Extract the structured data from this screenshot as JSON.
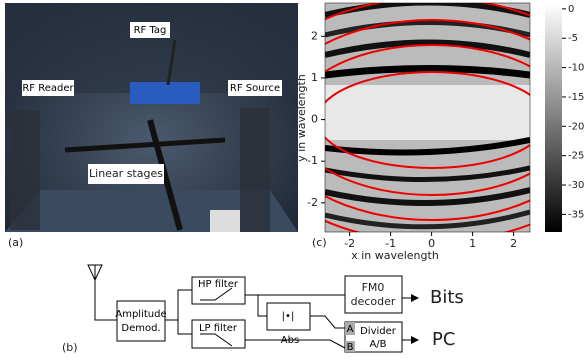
{
  "photo": {
    "tag": "RF Tag",
    "reader": "RF Reader",
    "source": "RF Source",
    "stages": "Linear stages",
    "caption": "(a)"
  },
  "heatmap": {
    "caption": "(c)",
    "xlabel": "x in wavelength",
    "ylabel": "y in wavelength",
    "xlim": [
      -2.6,
      2.4
    ],
    "xticks": [
      -2,
      -1,
      0,
      1,
      2
    ],
    "ylim": [
      -2.7,
      2.8
    ],
    "yticks": [
      -2,
      -1,
      0,
      1,
      2
    ],
    "colorbar": {
      "lim": [
        -38,
        1
      ],
      "ticks": [
        0,
        -5,
        -10,
        -15,
        -20,
        -25,
        -30,
        -35
      ]
    }
  },
  "diagram": {
    "caption": "(b)",
    "demod": [
      "Amplitude",
      "Demod."
    ],
    "hp": "HP filter",
    "lp": "LP filter",
    "abs_symbol": "|•|",
    "abs": "Abs",
    "fm0": [
      "FM0",
      "decoder"
    ],
    "divider": [
      "Divider",
      "A/B"
    ],
    "port_a": "A",
    "port_b": "B",
    "bits": "Bits",
    "pc": "PC"
  }
}
